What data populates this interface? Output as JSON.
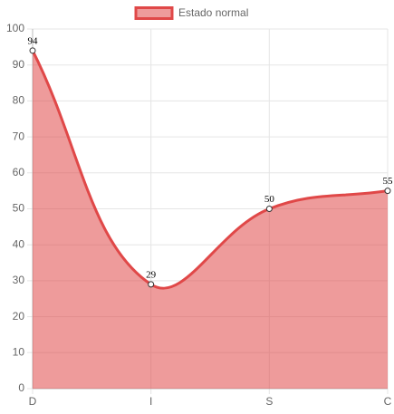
{
  "chart_data": {
    "type": "line",
    "categories": [
      "D",
      "I",
      "S",
      "C"
    ],
    "series": [
      {
        "name": "Estado normal",
        "color": "#e04848",
        "values": [
          94,
          29,
          50,
          55
        ]
      }
    ],
    "ylim": [
      0,
      100
    ],
    "yticks": [
      0,
      10,
      20,
      30,
      40,
      50,
      60,
      70,
      80,
      90,
      100
    ],
    "grid": true,
    "fill": true,
    "legend": "top"
  }
}
